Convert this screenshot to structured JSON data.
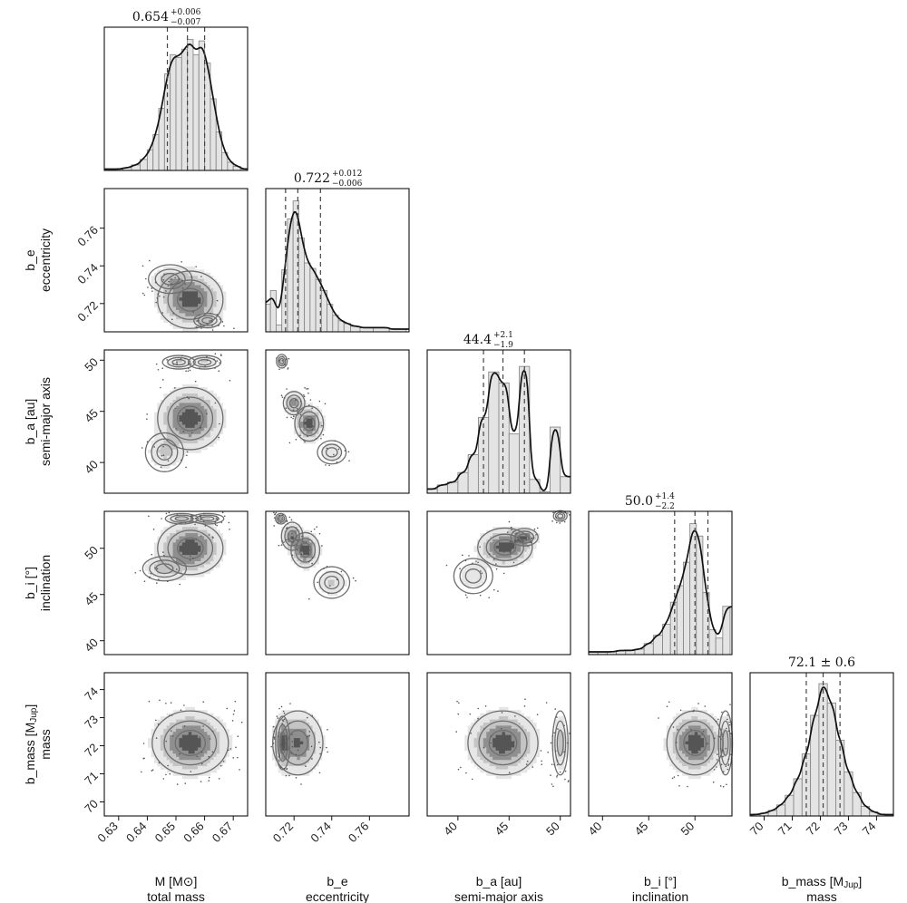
{
  "chart_data": {
    "type": "corner",
    "parameters": [
      {
        "key": "M",
        "label": "M [M⊙]",
        "description": "total mass",
        "range": [
          0.625,
          0.675
        ],
        "ticks": [
          0.63,
          0.64,
          0.65,
          0.66,
          0.67
        ],
        "tick_labels": [
          "0.63",
          "0.64",
          "0.65",
          "0.66",
          "0.67"
        ],
        "title": {
          "median": "0.654",
          "plus": "+0.006",
          "minus": "−0.007"
        },
        "quantiles": [
          0.647,
          0.654,
          0.66
        ],
        "histogram": [
          {
            "x": 0.627,
            "y": 0.01
          },
          {
            "x": 0.63,
            "y": 0.01
          },
          {
            "x": 0.633,
            "y": 0.02
          },
          {
            "x": 0.636,
            "y": 0.04
          },
          {
            "x": 0.639,
            "y": 0.08
          },
          {
            "x": 0.641,
            "y": 0.15
          },
          {
            "x": 0.643,
            "y": 0.26
          },
          {
            "x": 0.645,
            "y": 0.45
          },
          {
            "x": 0.647,
            "y": 0.7
          },
          {
            "x": 0.649,
            "y": 0.84
          },
          {
            "x": 0.651,
            "y": 0.82
          },
          {
            "x": 0.653,
            "y": 0.88
          },
          {
            "x": 0.655,
            "y": 0.95
          },
          {
            "x": 0.657,
            "y": 0.84
          },
          {
            "x": 0.659,
            "y": 0.94
          },
          {
            "x": 0.661,
            "y": 0.78
          },
          {
            "x": 0.663,
            "y": 0.52
          },
          {
            "x": 0.665,
            "y": 0.28
          },
          {
            "x": 0.667,
            "y": 0.13
          },
          {
            "x": 0.669,
            "y": 0.06
          },
          {
            "x": 0.671,
            "y": 0.03
          },
          {
            "x": 0.674,
            "y": 0.01
          }
        ]
      },
      {
        "key": "b_e",
        "label": "b_e",
        "description": "eccentricity",
        "range": [
          0.705,
          0.781
        ],
        "ticks": [
          0.72,
          0.74,
          0.76
        ],
        "tick_labels": [
          "0.72",
          "0.74",
          "0.76"
        ],
        "title": {
          "median": "0.722",
          "plus": "+0.012",
          "minus": "−0.006"
        },
        "quantiles": [
          0.7155,
          0.722,
          0.734
        ],
        "histogram": [
          {
            "x": 0.706,
            "y": 0.2
          },
          {
            "x": 0.709,
            "y": 0.3
          },
          {
            "x": 0.712,
            "y": 0.05
          },
          {
            "x": 0.715,
            "y": 0.45
          },
          {
            "x": 0.718,
            "y": 0.82
          },
          {
            "x": 0.721,
            "y": 0.95
          },
          {
            "x": 0.724,
            "y": 0.68
          },
          {
            "x": 0.727,
            "y": 0.5
          },
          {
            "x": 0.73,
            "y": 0.46
          },
          {
            "x": 0.733,
            "y": 0.38
          },
          {
            "x": 0.736,
            "y": 0.3
          },
          {
            "x": 0.739,
            "y": 0.2
          },
          {
            "x": 0.742,
            "y": 0.12
          },
          {
            "x": 0.745,
            "y": 0.08
          },
          {
            "x": 0.748,
            "y": 0.06
          },
          {
            "x": 0.752,
            "y": 0.04
          },
          {
            "x": 0.758,
            "y": 0.03
          },
          {
            "x": 0.766,
            "y": 0.03
          },
          {
            "x": 0.775,
            "y": 0.02
          }
        ]
      },
      {
        "key": "b_a",
        "label": "b_a [au]",
        "description": "semi-major axis",
        "range": [
          37.0,
          51.0
        ],
        "ticks": [
          40,
          45,
          50
        ],
        "tick_labels": [
          "40",
          "45",
          "50"
        ],
        "title": {
          "median": "44.4",
          "plus": "+2.1",
          "minus": "−1.9"
        },
        "quantiles": [
          42.5,
          44.4,
          46.5
        ],
        "histogram": [
          {
            "x": 37.5,
            "y": 0.03
          },
          {
            "x": 38.5,
            "y": 0.06
          },
          {
            "x": 39.5,
            "y": 0.08
          },
          {
            "x": 40.5,
            "y": 0.15
          },
          {
            "x": 41.5,
            "y": 0.28
          },
          {
            "x": 42.5,
            "y": 0.55
          },
          {
            "x": 43.5,
            "y": 0.88
          },
          {
            "x": 44.5,
            "y": 0.8
          },
          {
            "x": 45.5,
            "y": 0.43
          },
          {
            "x": 46.5,
            "y": 0.92
          },
          {
            "x": 47.5,
            "y": 0.1
          },
          {
            "x": 48.5,
            "y": 0.01
          },
          {
            "x": 49.5,
            "y": 0.48
          },
          {
            "x": 50.5,
            "y": 0.12
          }
        ]
      },
      {
        "key": "b_i",
        "label": "b_i [°]",
        "description": "inclination",
        "range": [
          38.5,
          54.0
        ],
        "ticks": [
          40,
          45,
          50
        ],
        "tick_labels": [
          "40",
          "45",
          "50"
        ],
        "title": {
          "median": "50.0",
          "plus": "+1.4",
          "minus": "−2.2"
        },
        "quantiles": [
          47.8,
          50.0,
          51.4
        ],
        "histogram": [
          {
            "x": 39.0,
            "y": 0.02
          },
          {
            "x": 40.0,
            "y": 0.02
          },
          {
            "x": 41.0,
            "y": 0.02
          },
          {
            "x": 42.0,
            "y": 0.03
          },
          {
            "x": 43.0,
            "y": 0.03
          },
          {
            "x": 44.0,
            "y": 0.04
          },
          {
            "x": 45.0,
            "y": 0.08
          },
          {
            "x": 46.0,
            "y": 0.14
          },
          {
            "x": 47.0,
            "y": 0.22
          },
          {
            "x": 47.7,
            "y": 0.38
          },
          {
            "x": 48.4,
            "y": 0.5
          },
          {
            "x": 49.1,
            "y": 0.67
          },
          {
            "x": 49.8,
            "y": 0.95
          },
          {
            "x": 50.5,
            "y": 0.86
          },
          {
            "x": 51.2,
            "y": 0.45
          },
          {
            "x": 51.9,
            "y": 0.18
          },
          {
            "x": 52.6,
            "y": 0.12
          },
          {
            "x": 53.4,
            "y": 0.35
          }
        ]
      },
      {
        "key": "b_mass",
        "label": "b_mass [M",
        "label_sub": "Jup",
        "label_end": "]",
        "description": "mass",
        "range": [
          69.5,
          74.6
        ],
        "ticks": [
          70,
          71,
          72,
          73,
          74
        ],
        "tick_labels": [
          "70",
          "71",
          "72",
          "73",
          "74"
        ],
        "title": {
          "median": "72.1",
          "pm": "± 0.6"
        },
        "quantiles": [
          71.5,
          72.1,
          72.7
        ],
        "histogram": [
          {
            "x": 69.7,
            "y": 0.01
          },
          {
            "x": 70.0,
            "y": 0.02
          },
          {
            "x": 70.3,
            "y": 0.04
          },
          {
            "x": 70.6,
            "y": 0.08
          },
          {
            "x": 70.9,
            "y": 0.15
          },
          {
            "x": 71.2,
            "y": 0.27
          },
          {
            "x": 71.5,
            "y": 0.45
          },
          {
            "x": 71.8,
            "y": 0.73
          },
          {
            "x": 72.1,
            "y": 0.96
          },
          {
            "x": 72.4,
            "y": 0.82
          },
          {
            "x": 72.7,
            "y": 0.55
          },
          {
            "x": 73.0,
            "y": 0.32
          },
          {
            "x": 73.3,
            "y": 0.17
          },
          {
            "x": 73.6,
            "y": 0.07
          },
          {
            "x": 73.9,
            "y": 0.03
          },
          {
            "x": 74.2,
            "y": 0.01
          },
          {
            "x": 74.5,
            "y": 0.01
          }
        ]
      }
    ],
    "pair_modes": {
      "1-0": [
        {
          "x": 0.655,
          "y": 0.722,
          "sx": 0.006,
          "sy": 0.008,
          "w": 1.0
        },
        {
          "x": 0.648,
          "y": 0.733,
          "sx": 0.004,
          "sy": 0.004,
          "w": 0.35
        },
        {
          "x": 0.661,
          "y": 0.711,
          "sx": 0.0025,
          "sy": 0.002,
          "w": 0.3
        }
      ],
      "2-0": [
        {
          "x": 0.655,
          "y": 44.3,
          "sx": 0.006,
          "sy": 1.6,
          "w": 1.0
        },
        {
          "x": 0.646,
          "y": 41.0,
          "sx": 0.0035,
          "sy": 1.0,
          "w": 0.35
        },
        {
          "x": 0.651,
          "y": 49.8,
          "sx": 0.003,
          "sy": 0.35,
          "w": 0.35
        },
        {
          "x": 0.66,
          "y": 49.8,
          "sx": 0.003,
          "sy": 0.35,
          "w": 0.35
        }
      ],
      "2-1": [
        {
          "x": 0.7135,
          "y": 49.9,
          "sx": 0.0015,
          "sy": 0.35,
          "w": 0.5
        },
        {
          "x": 0.72,
          "y": 45.8,
          "sx": 0.003,
          "sy": 0.6,
          "w": 0.7
        },
        {
          "x": 0.728,
          "y": 43.8,
          "sx": 0.004,
          "sy": 0.9,
          "w": 1.0
        },
        {
          "x": 0.74,
          "y": 41.0,
          "sx": 0.004,
          "sy": 0.6,
          "w": 0.3
        }
      ],
      "3-0": [
        {
          "x": 0.655,
          "y": 50.0,
          "sx": 0.006,
          "sy": 1.5,
          "w": 1.0
        },
        {
          "x": 0.646,
          "y": 47.8,
          "sx": 0.004,
          "sy": 0.7,
          "w": 0.4
        },
        {
          "x": 0.652,
          "y": 53.2,
          "sx": 0.003,
          "sy": 0.3,
          "w": 0.3
        },
        {
          "x": 0.661,
          "y": 53.2,
          "sx": 0.003,
          "sy": 0.3,
          "w": 0.3
        }
      ],
      "3-1": [
        {
          "x": 0.713,
          "y": 53.2,
          "sx": 0.0015,
          "sy": 0.3,
          "w": 0.4
        },
        {
          "x": 0.719,
          "y": 51.3,
          "sx": 0.003,
          "sy": 0.8,
          "w": 0.8
        },
        {
          "x": 0.726,
          "y": 49.8,
          "sx": 0.004,
          "sy": 1.0,
          "w": 1.0
        },
        {
          "x": 0.74,
          "y": 46.3,
          "sx": 0.005,
          "sy": 0.9,
          "w": 0.35
        }
      ],
      "3-2": [
        {
          "x": 44.6,
          "y": 50.1,
          "sx": 1.4,
          "sy": 1.1,
          "w": 1.0
        },
        {
          "x": 46.5,
          "y": 51.2,
          "sx": 0.7,
          "sy": 0.5,
          "w": 0.7
        },
        {
          "x": 41.5,
          "y": 47.0,
          "sx": 1.0,
          "sy": 1.0,
          "w": 0.25
        },
        {
          "x": 50.0,
          "y": 53.5,
          "sx": 0.35,
          "sy": 0.3,
          "w": 0.3
        }
      ],
      "4-0": [
        {
          "x": 0.655,
          "y": 72.1,
          "sx": 0.007,
          "sy": 0.6,
          "w": 1.0
        }
      ],
      "4-1": [
        {
          "x": 0.722,
          "y": 72.1,
          "sx": 0.007,
          "sy": 0.6,
          "w": 1.0
        },
        {
          "x": 0.714,
          "y": 72.1,
          "sx": 0.002,
          "sy": 0.5,
          "w": 0.6
        }
      ],
      "4-2": [
        {
          "x": 44.4,
          "y": 72.1,
          "sx": 1.8,
          "sy": 0.6,
          "w": 1.0
        },
        {
          "x": 50.0,
          "y": 72.1,
          "sx": 0.4,
          "sy": 0.6,
          "w": 0.45
        }
      ],
      "4-3": [
        {
          "x": 50.0,
          "y": 72.1,
          "sx": 1.6,
          "sy": 0.6,
          "w": 1.0
        },
        {
          "x": 53.3,
          "y": 72.1,
          "sx": 0.4,
          "sy": 0.6,
          "w": 0.35
        }
      ]
    }
  }
}
